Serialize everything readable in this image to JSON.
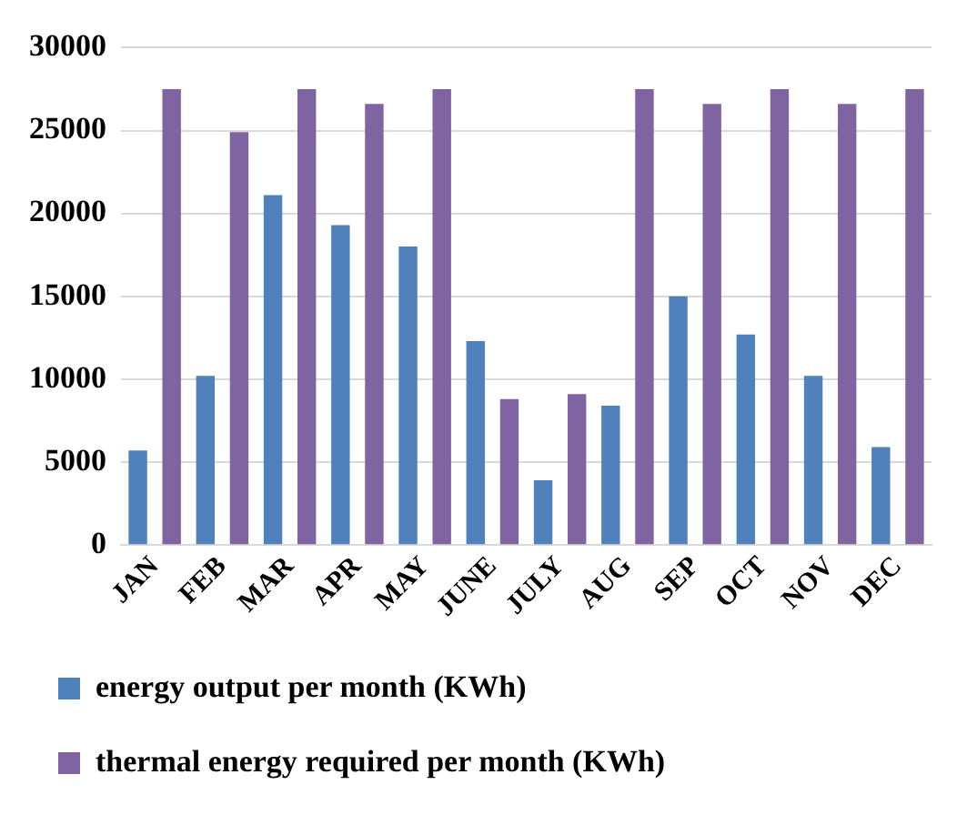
{
  "chart_data": {
    "type": "bar",
    "categories": [
      "JAN",
      "FEB",
      "MAR",
      "APR",
      "MAY",
      "JUNE",
      "JULY",
      "AUG",
      "SEP",
      "OCT",
      "NOV",
      "DEC"
    ],
    "series": [
      {
        "name": "energy output per month (KWh)",
        "color": "#4f81bd",
        "values": [
          5700,
          10200,
          21100,
          19300,
          18000,
          12300,
          3900,
          8400,
          15000,
          12700,
          10200,
          5900
        ]
      },
      {
        "name": "thermal energy required per month (KWh)",
        "color": "#8064a2",
        "values": [
          27500,
          24900,
          27500,
          26600,
          27500,
          8800,
          9100,
          27500,
          26600,
          27500,
          26600,
          27500
        ]
      }
    ],
    "ylim": [
      0,
      30000
    ],
    "yticks": [
      0,
      5000,
      10000,
      15000,
      20000,
      25000,
      30000
    ],
    "grid": "y",
    "legend": "bottom"
  }
}
